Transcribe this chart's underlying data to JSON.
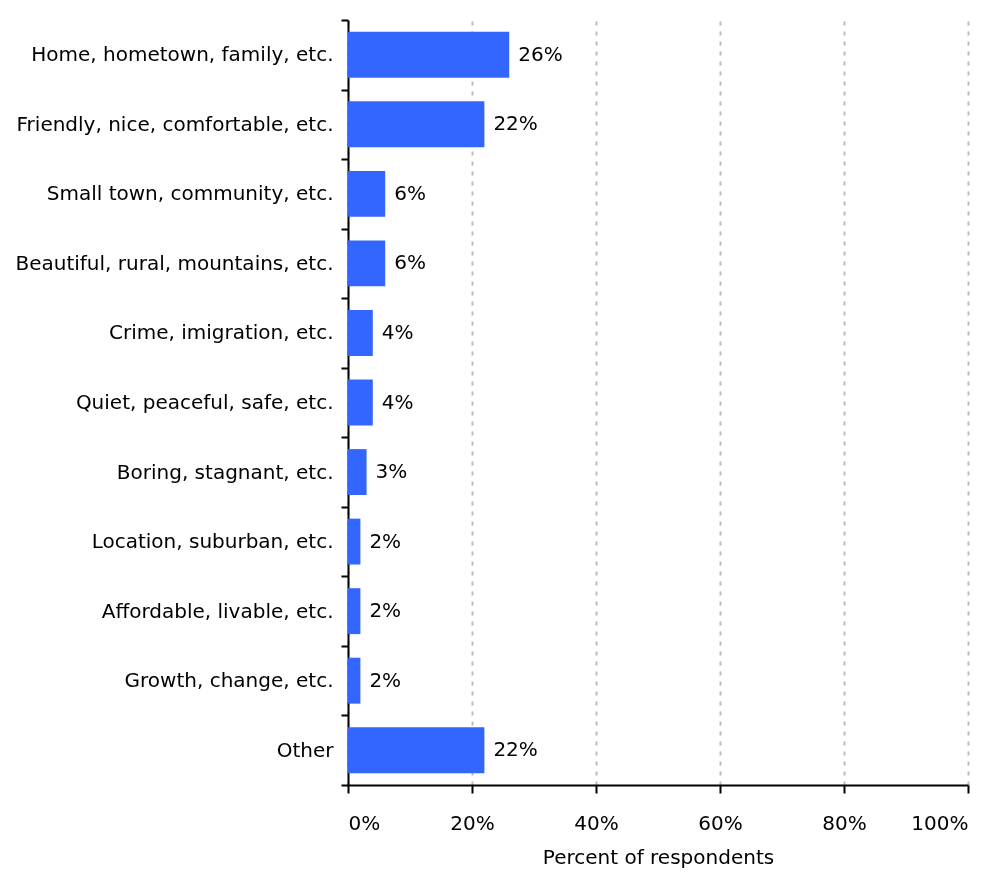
{
  "chart_data": {
    "type": "bar",
    "orientation": "horizontal",
    "categories": [
      "Home, hometown, family, etc.",
      "Friendly, nice, comfortable, etc.",
      "Small town, community, etc.",
      "Beautiful, rural, mountains, etc.",
      "Crime, imigration, etc.",
      "Quiet, peaceful, safe, etc.",
      "Boring, stagnant, etc.",
      "Location, suburban, etc.",
      "Affordable, livable, etc.",
      "Growth, change, etc.",
      "Other"
    ],
    "values": [
      26,
      22,
      6,
      6,
      4,
      4,
      3,
      2,
      2,
      2,
      22
    ],
    "value_labels": [
      "26%",
      "22%",
      "6%",
      "6%",
      "4%",
      "4%",
      "3%",
      "2%",
      "2%",
      "2%",
      "22%"
    ],
    "color": "#3366ff",
    "xlabel": "Percent of respondents",
    "xlim": [
      0,
      100
    ],
    "xticks": [
      {
        "value": 0,
        "label": "0%"
      },
      {
        "value": 20,
        "label": "20%"
      },
      {
        "value": 40,
        "label": "40%"
      },
      {
        "value": 60,
        "label": "60%"
      },
      {
        "value": 80,
        "label": "80%"
      },
      {
        "value": 100,
        "label": "100%"
      }
    ],
    "grid": "x"
  }
}
